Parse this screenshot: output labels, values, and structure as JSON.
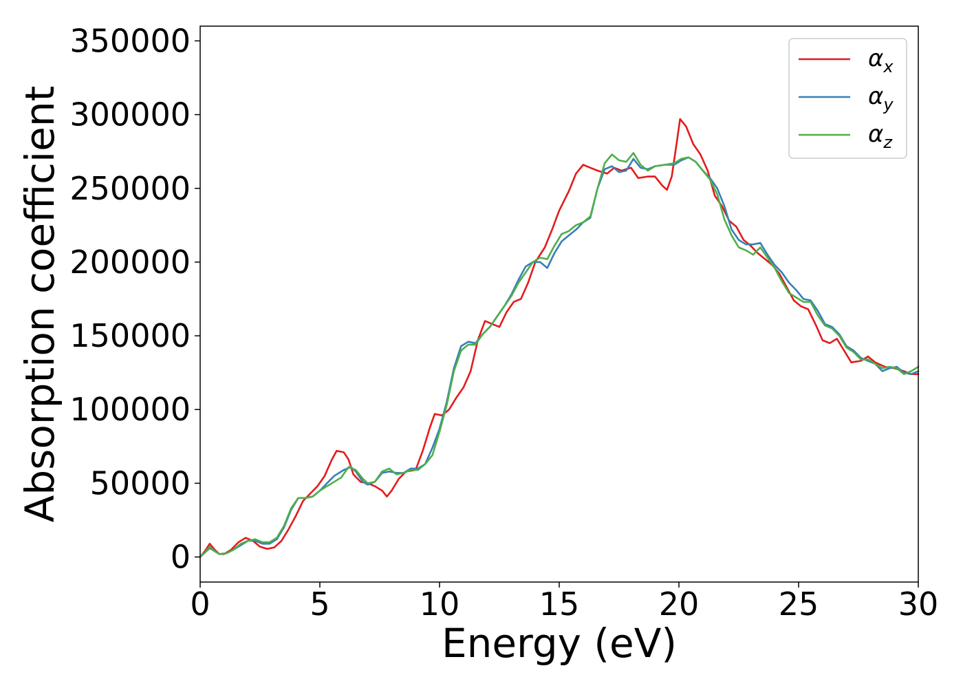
{
  "chart_data": {
    "type": "line",
    "title": "",
    "xlabel": "Energy (eV)",
    "ylabel": "Absorption coefficient",
    "xlim": [
      0,
      30
    ],
    "ylim": [
      -17000,
      360000
    ],
    "xticks": [
      0,
      5,
      10,
      15,
      20,
      25,
      30
    ],
    "yticks": [
      0,
      50000,
      100000,
      150000,
      200000,
      250000,
      300000,
      350000
    ],
    "grid": false,
    "legend_position": "top-right",
    "series": [
      {
        "name": "α",
        "subscript": "x",
        "color": "#e41a1c",
        "points": [
          [
            0,
            0
          ],
          [
            0.2,
            4000
          ],
          [
            0.4,
            9000
          ],
          [
            0.6,
            5000
          ],
          [
            0.8,
            2000
          ],
          [
            1.0,
            2000
          ],
          [
            1.3,
            5000
          ],
          [
            1.6,
            10000
          ],
          [
            1.9,
            13000
          ],
          [
            2.2,
            11000
          ],
          [
            2.5,
            7000
          ],
          [
            2.8,
            5500
          ],
          [
            3.1,
            6500
          ],
          [
            3.4,
            11000
          ],
          [
            3.7,
            19000
          ],
          [
            4.0,
            28000
          ],
          [
            4.3,
            38000
          ],
          [
            4.6,
            43000
          ],
          [
            4.9,
            48000
          ],
          [
            5.2,
            55000
          ],
          [
            5.5,
            66000
          ],
          [
            5.7,
            72000
          ],
          [
            6.0,
            71000
          ],
          [
            6.2,
            66000
          ],
          [
            6.4,
            56000
          ],
          [
            6.7,
            51000
          ],
          [
            7.0,
            50000
          ],
          [
            7.3,
            48000
          ],
          [
            7.6,
            45000
          ],
          [
            7.8,
            41000
          ],
          [
            8.0,
            45000
          ],
          [
            8.3,
            53000
          ],
          [
            8.6,
            58000
          ],
          [
            9.0,
            59000
          ],
          [
            9.3,
            72000
          ],
          [
            9.6,
            88000
          ],
          [
            9.8,
            97000
          ],
          [
            10.1,
            96000
          ],
          [
            10.4,
            100000
          ],
          [
            10.7,
            108000
          ],
          [
            11.0,
            115000
          ],
          [
            11.3,
            126000
          ],
          [
            11.6,
            147000
          ],
          [
            11.9,
            160000
          ],
          [
            12.2,
            158000
          ],
          [
            12.5,
            156000
          ],
          [
            12.8,
            166000
          ],
          [
            13.1,
            173000
          ],
          [
            13.4,
            175000
          ],
          [
            13.7,
            186000
          ],
          [
            14.0,
            200000
          ],
          [
            14.4,
            210000
          ],
          [
            14.7,
            222000
          ],
          [
            15.0,
            235000
          ],
          [
            15.4,
            248000
          ],
          [
            15.7,
            260000
          ],
          [
            16.0,
            266000
          ],
          [
            16.3,
            264000
          ],
          [
            16.6,
            262000
          ],
          [
            17.0,
            260000
          ],
          [
            17.3,
            264000
          ],
          [
            17.6,
            262000
          ],
          [
            18.0,
            264000
          ],
          [
            18.3,
            257000
          ],
          [
            18.7,
            258000
          ],
          [
            19.0,
            258000
          ],
          [
            19.3,
            252000
          ],
          [
            19.5,
            249000
          ],
          [
            19.7,
            258000
          ],
          [
            19.9,
            280000
          ],
          [
            20.05,
            297000
          ],
          [
            20.3,
            292000
          ],
          [
            20.6,
            280000
          ],
          [
            20.9,
            273000
          ],
          [
            21.2,
            262000
          ],
          [
            21.5,
            245000
          ],
          [
            21.8,
            238000
          ],
          [
            22.1,
            228000
          ],
          [
            22.4,
            224000
          ],
          [
            22.7,
            215000
          ],
          [
            23.0,
            211000
          ],
          [
            23.3,
            206000
          ],
          [
            23.6,
            202000
          ],
          [
            23.9,
            198000
          ],
          [
            24.2,
            192000
          ],
          [
            24.5,
            183000
          ],
          [
            24.8,
            174000
          ],
          [
            25.1,
            170000
          ],
          [
            25.4,
            168000
          ],
          [
            25.7,
            158000
          ],
          [
            26.0,
            147000
          ],
          [
            26.3,
            145000
          ],
          [
            26.6,
            148000
          ],
          [
            26.9,
            140000
          ],
          [
            27.2,
            132000
          ],
          [
            27.6,
            133000
          ],
          [
            27.9,
            136000
          ],
          [
            28.2,
            132000
          ],
          [
            28.6,
            129000
          ],
          [
            29.0,
            128000
          ],
          [
            29.4,
            126000
          ],
          [
            29.7,
            124000
          ],
          [
            30.0,
            124000
          ]
        ]
      },
      {
        "name": "α",
        "subscript": "y",
        "color": "#377eb8",
        "points": [
          [
            0,
            0
          ],
          [
            0.2,
            3000
          ],
          [
            0.4,
            6000
          ],
          [
            0.6,
            4000
          ],
          [
            0.8,
            2000
          ],
          [
            1.1,
            2500
          ],
          [
            1.4,
            5000
          ],
          [
            1.7,
            8000
          ],
          [
            2.0,
            11000
          ],
          [
            2.3,
            11000
          ],
          [
            2.6,
            9000
          ],
          [
            2.9,
            9000
          ],
          [
            3.2,
            12000
          ],
          [
            3.5,
            20000
          ],
          [
            3.8,
            32000
          ],
          [
            4.1,
            40000
          ],
          [
            4.4,
            40000
          ],
          [
            4.7,
            41000
          ],
          [
            5.0,
            45000
          ],
          [
            5.3,
            50000
          ],
          [
            5.6,
            55000
          ],
          [
            6.0,
            59000
          ],
          [
            6.3,
            61000
          ],
          [
            6.5,
            58000
          ],
          [
            6.8,
            51000
          ],
          [
            7.0,
            49000
          ],
          [
            7.3,
            51000
          ],
          [
            7.6,
            57000
          ],
          [
            7.9,
            58000
          ],
          [
            8.2,
            57000
          ],
          [
            8.5,
            57000
          ],
          [
            8.8,
            60000
          ],
          [
            9.1,
            60000
          ],
          [
            9.4,
            63000
          ],
          [
            9.7,
            74000
          ],
          [
            10.0,
            87000
          ],
          [
            10.3,
            105000
          ],
          [
            10.6,
            128000
          ],
          [
            10.9,
            143000
          ],
          [
            11.2,
            146000
          ],
          [
            11.5,
            145000
          ],
          [
            11.8,
            151000
          ],
          [
            12.1,
            156000
          ],
          [
            12.4,
            163000
          ],
          [
            12.7,
            170000
          ],
          [
            13.0,
            178000
          ],
          [
            13.3,
            188000
          ],
          [
            13.6,
            197000
          ],
          [
            13.9,
            200000
          ],
          [
            14.2,
            200000
          ],
          [
            14.5,
            196000
          ],
          [
            14.8,
            206000
          ],
          [
            15.1,
            214000
          ],
          [
            15.4,
            218000
          ],
          [
            15.7,
            222000
          ],
          [
            16.0,
            227000
          ],
          [
            16.3,
            230000
          ],
          [
            16.6,
            250000
          ],
          [
            16.9,
            263000
          ],
          [
            17.2,
            265000
          ],
          [
            17.5,
            261000
          ],
          [
            17.8,
            262000
          ],
          [
            18.1,
            270000
          ],
          [
            18.4,
            264000
          ],
          [
            18.7,
            263000
          ],
          [
            19.0,
            265000
          ],
          [
            19.4,
            266000
          ],
          [
            19.8,
            266000
          ],
          [
            20.1,
            269000
          ],
          [
            20.4,
            271000
          ],
          [
            20.7,
            268000
          ],
          [
            21.0,
            262000
          ],
          [
            21.3,
            257000
          ],
          [
            21.6,
            250000
          ],
          [
            21.9,
            238000
          ],
          [
            22.2,
            222000
          ],
          [
            22.5,
            215000
          ],
          [
            22.8,
            212000
          ],
          [
            23.1,
            212000
          ],
          [
            23.4,
            213000
          ],
          [
            23.7,
            205000
          ],
          [
            24.0,
            198000
          ],
          [
            24.3,
            193000
          ],
          [
            24.6,
            186000
          ],
          [
            24.9,
            181000
          ],
          [
            25.2,
            175000
          ],
          [
            25.5,
            174000
          ],
          [
            25.8,
            167000
          ],
          [
            26.1,
            158000
          ],
          [
            26.4,
            156000
          ],
          [
            26.7,
            151000
          ],
          [
            27.0,
            143000
          ],
          [
            27.3,
            140000
          ],
          [
            27.6,
            135000
          ],
          [
            27.9,
            133000
          ],
          [
            28.2,
            131000
          ],
          [
            28.5,
            126000
          ],
          [
            28.8,
            128000
          ],
          [
            29.1,
            129000
          ],
          [
            29.4,
            125000
          ],
          [
            29.7,
            124000
          ],
          [
            30.0,
            126000
          ]
        ]
      },
      {
        "name": "α",
        "subscript": "z",
        "color": "#4daf4a",
        "points": [
          [
            0,
            0
          ],
          [
            0.2,
            3000
          ],
          [
            0.4,
            7000
          ],
          [
            0.6,
            4000
          ],
          [
            0.8,
            2000
          ],
          [
            1.1,
            2500
          ],
          [
            1.4,
            5000
          ],
          [
            1.7,
            9000
          ],
          [
            2.0,
            11000
          ],
          [
            2.3,
            12000
          ],
          [
            2.6,
            10000
          ],
          [
            2.9,
            10000
          ],
          [
            3.2,
            13000
          ],
          [
            3.5,
            21000
          ],
          [
            3.8,
            33000
          ],
          [
            4.1,
            40000
          ],
          [
            4.4,
            40000
          ],
          [
            4.7,
            41000
          ],
          [
            5.0,
            45000
          ],
          [
            5.3,
            48000
          ],
          [
            5.6,
            51000
          ],
          [
            5.9,
            54000
          ],
          [
            6.2,
            61000
          ],
          [
            6.5,
            59000
          ],
          [
            6.8,
            53000
          ],
          [
            7.0,
            50000
          ],
          [
            7.3,
            51000
          ],
          [
            7.6,
            58000
          ],
          [
            7.9,
            60000
          ],
          [
            8.2,
            56000
          ],
          [
            8.5,
            57000
          ],
          [
            8.8,
            59000
          ],
          [
            9.1,
            59000
          ],
          [
            9.4,
            63000
          ],
          [
            9.7,
            69000
          ],
          [
            10.0,
            85000
          ],
          [
            10.3,
            103000
          ],
          [
            10.6,
            126000
          ],
          [
            10.9,
            140000
          ],
          [
            11.2,
            144000
          ],
          [
            11.5,
            144000
          ],
          [
            11.8,
            151000
          ],
          [
            12.1,
            156000
          ],
          [
            12.4,
            163000
          ],
          [
            12.7,
            170000
          ],
          [
            13.0,
            177000
          ],
          [
            13.3,
            186000
          ],
          [
            13.6,
            193000
          ],
          [
            13.9,
            200000
          ],
          [
            14.2,
            203000
          ],
          [
            14.5,
            202000
          ],
          [
            14.8,
            211000
          ],
          [
            15.1,
            219000
          ],
          [
            15.4,
            221000
          ],
          [
            15.7,
            225000
          ],
          [
            16.0,
            227000
          ],
          [
            16.3,
            231000
          ],
          [
            16.6,
            250000
          ],
          [
            16.9,
            267000
          ],
          [
            17.2,
            273000
          ],
          [
            17.5,
            269000
          ],
          [
            17.8,
            268000
          ],
          [
            18.1,
            274000
          ],
          [
            18.4,
            266000
          ],
          [
            18.7,
            262000
          ],
          [
            19.0,
            265000
          ],
          [
            19.4,
            266000
          ],
          [
            19.8,
            267000
          ],
          [
            20.1,
            270000
          ],
          [
            20.4,
            271000
          ],
          [
            20.7,
            268000
          ],
          [
            21.0,
            262000
          ],
          [
            21.3,
            256000
          ],
          [
            21.6,
            246000
          ],
          [
            21.9,
            229000
          ],
          [
            22.2,
            218000
          ],
          [
            22.5,
            210000
          ],
          [
            22.8,
            208000
          ],
          [
            23.1,
            205000
          ],
          [
            23.4,
            210000
          ],
          [
            23.7,
            203000
          ],
          [
            24.0,
            196000
          ],
          [
            24.3,
            187000
          ],
          [
            24.6,
            179000
          ],
          [
            24.9,
            176000
          ],
          [
            25.2,
            173000
          ],
          [
            25.5,
            173000
          ],
          [
            25.8,
            164000
          ],
          [
            26.1,
            157000
          ],
          [
            26.4,
            155000
          ],
          [
            26.7,
            150000
          ],
          [
            27.0,
            142000
          ],
          [
            27.3,
            139000
          ],
          [
            27.6,
            134000
          ],
          [
            27.9,
            134000
          ],
          [
            28.2,
            131000
          ],
          [
            28.5,
            128000
          ],
          [
            28.8,
            129000
          ],
          [
            29.1,
            128000
          ],
          [
            29.4,
            124000
          ],
          [
            29.7,
            126000
          ],
          [
            30.0,
            129000
          ]
        ]
      }
    ]
  }
}
